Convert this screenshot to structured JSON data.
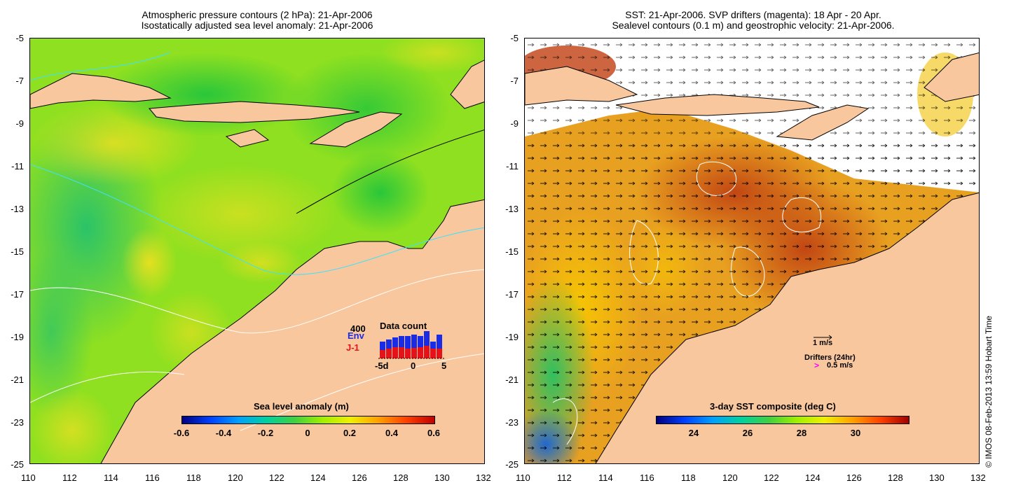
{
  "left_panel": {
    "title_line1": "Atmospheric pressure contours (2 hPa): 21-Apr-2006",
    "title_line2": "Isostatically adjusted sea level anomaly: 21-Apr-2006",
    "colorbar_title": "Sea level anomaly (m)",
    "colorbar_ticks": [
      "-0.6",
      "-0.4",
      "-0.2",
      "0",
      "0.2",
      "0.4",
      "0.6"
    ],
    "inset": {
      "count_label": "400",
      "env_label": "Env",
      "j1_label": "J-1",
      "title": "Data count",
      "x_ticks": [
        "-5d",
        "0",
        "5"
      ],
      "env_color": "#1a2be6",
      "j1_color": "#e6121a"
    }
  },
  "right_panel": {
    "title_line1": "SST: 21-Apr-2006. SVP drifters (magenta): 18 Apr - 20 Apr.",
    "title_line2": "Sealevel contours (0.1 m) and geostrophic velocity: 21-Apr-2006.",
    "colorbar_title": "3-day SST composite (deg C)",
    "colorbar_ticks": [
      "24",
      "26",
      "28",
      "30"
    ],
    "scale_label": "1 m/s",
    "drifters_label": "Drifters (24hr)",
    "drifter_scale": "0.5 m/s"
  },
  "axes": {
    "lat_ticks": [
      "-5",
      "-7",
      "-9",
      "-11",
      "-13",
      "-15",
      "-17",
      "-19",
      "-21",
      "-23",
      "-25"
    ],
    "lon_ticks": [
      "110",
      "112",
      "114",
      "116",
      "118",
      "120",
      "122",
      "124",
      "126",
      "128",
      "130",
      "132"
    ]
  },
  "copyright": "© IMOS 08-Feb-2013 13:59 Hobart Time",
  "colors": {
    "land": "#f9c79e",
    "ocean_left": "#b8f000",
    "ocean_right": "#e8a020"
  }
}
